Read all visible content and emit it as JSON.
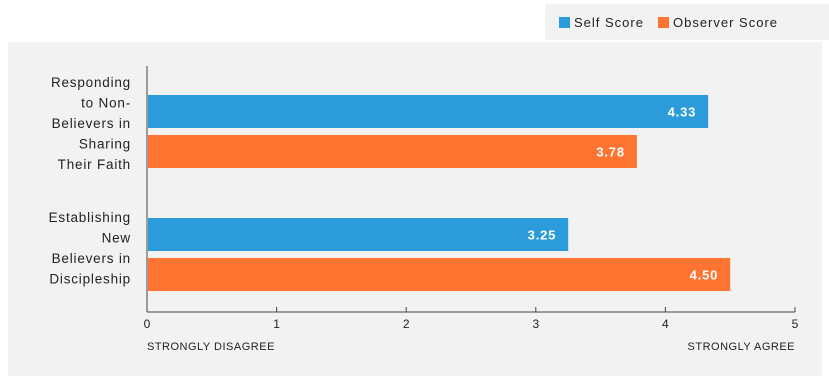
{
  "legend": {
    "self_label": "Self Score",
    "observer_label": "Observer Score"
  },
  "colors": {
    "self": "#2b9bd9",
    "observer": "#ff7430",
    "panel": "#f2f2f2"
  },
  "chart_data": {
    "type": "bar",
    "orientation": "horizontal",
    "categories": [
      [
        "Responding",
        "to Non-",
        "Believers in",
        "Sharing",
        "Their Faith"
      ],
      [
        "Establishing",
        "New",
        "Believers in",
        "Discipleship"
      ]
    ],
    "series": [
      {
        "name": "Self Score",
        "values": [
          4.33,
          3.25
        ]
      },
      {
        "name": "Observer Score",
        "values": [
          3.78,
          4.5
        ]
      }
    ],
    "xlim": [
      0,
      5
    ],
    "xticks": [
      "0",
      "1",
      "2",
      "3",
      "4",
      "5"
    ],
    "x_left_label": "STRONGLY DISAGREE",
    "x_right_label": "STRONGLY AGREE",
    "legend_position": "top-right",
    "grid": false
  }
}
